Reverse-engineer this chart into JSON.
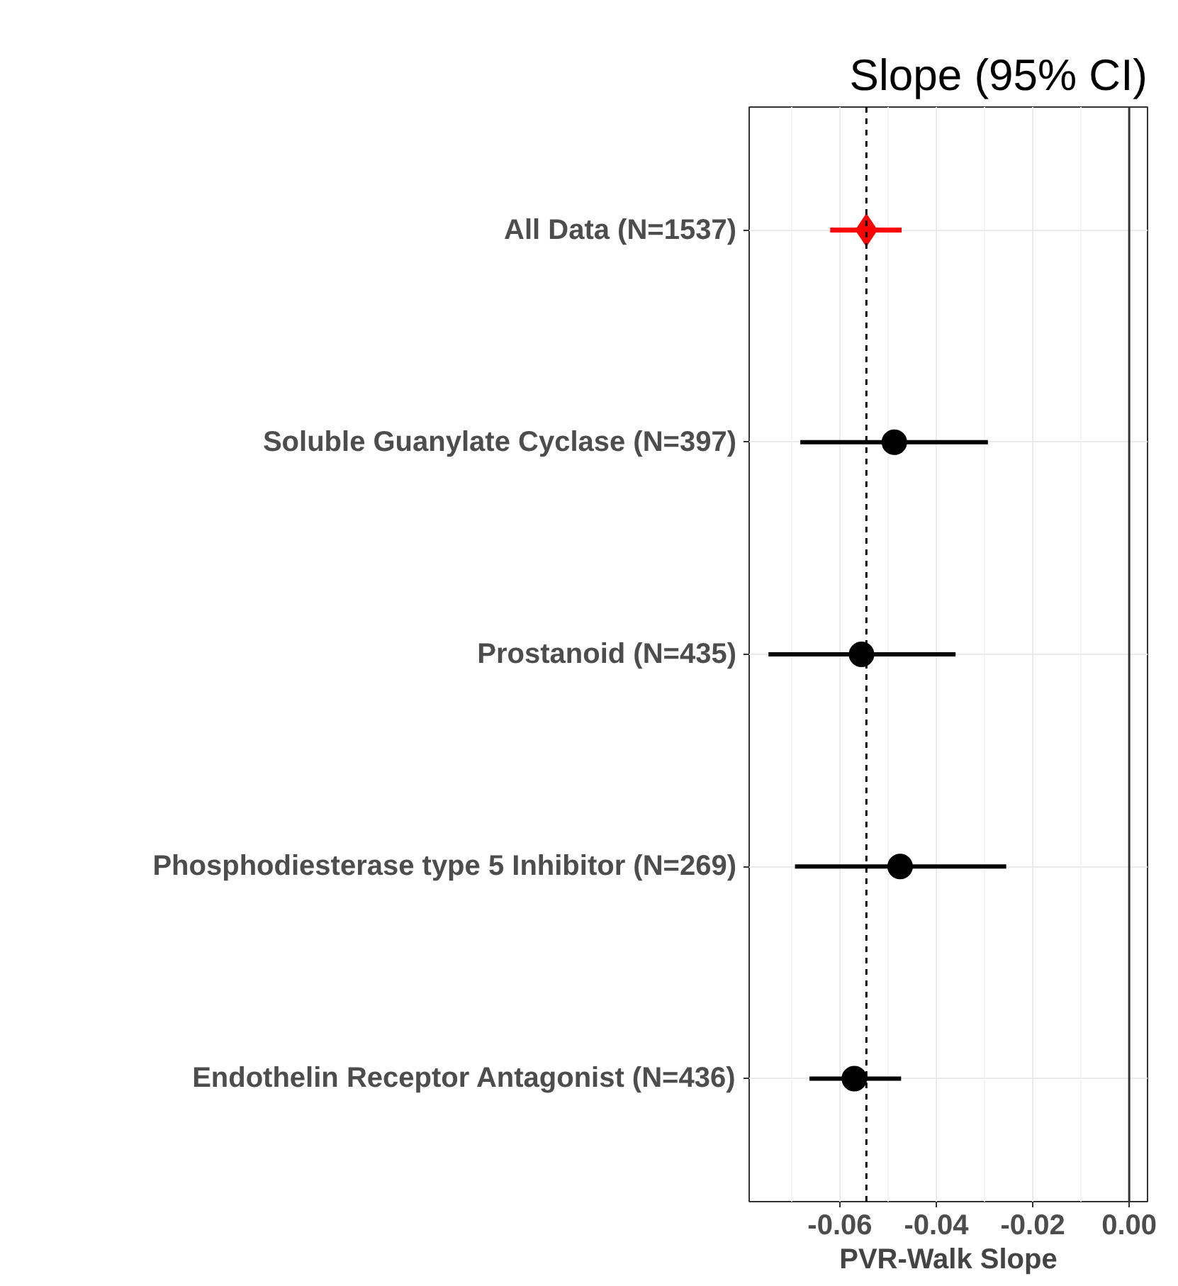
{
  "chart_data": {
    "type": "scatter",
    "orientation": "horizontal",
    "title": "Slope (95% CI)",
    "xlabel": "PVR-Walk Slope",
    "categories": [
      "All Data (N=1537)",
      "Soluble Guanylate Cyclase (N=397)",
      "Prostanoid (N=435)",
      "Phosphodiesterase type 5 Inhibitor (N=269)",
      "Endothelin Receptor Antagonist (N=436)"
    ],
    "series": [
      {
        "color": "#ff0000",
        "marker": "diamond",
        "values": [
          -0.0545,
          null,
          null,
          null,
          null
        ],
        "errors": [
          [
            -0.062,
            -0.0472
          ],
          null,
          null,
          null,
          null
        ]
      },
      {
        "color": "#000000",
        "marker": "circle",
        "values": [
          null,
          -0.0487,
          -0.0555,
          -0.0475,
          -0.057
        ],
        "errors": [
          null,
          [
            -0.0682,
            -0.0293
          ],
          [
            -0.0748,
            -0.036
          ],
          [
            -0.0693,
            -0.0255
          ],
          [
            -0.0663,
            -0.0473
          ]
        ]
      }
    ],
    "xlim": [
      -0.0788,
      0.0038
    ],
    "xticks": [
      -0.06,
      -0.04,
      -0.02,
      {
        "value": 0,
        "label": "0.00"
      }
    ],
    "grid": true,
    "ref_lines": [
      {
        "axis": "x",
        "value": -0.0545,
        "line_style": "dashed",
        "color": "#000000"
      },
      {
        "axis": "x",
        "value": 0,
        "line_style": "solid",
        "color": "#333333"
      }
    ]
  }
}
